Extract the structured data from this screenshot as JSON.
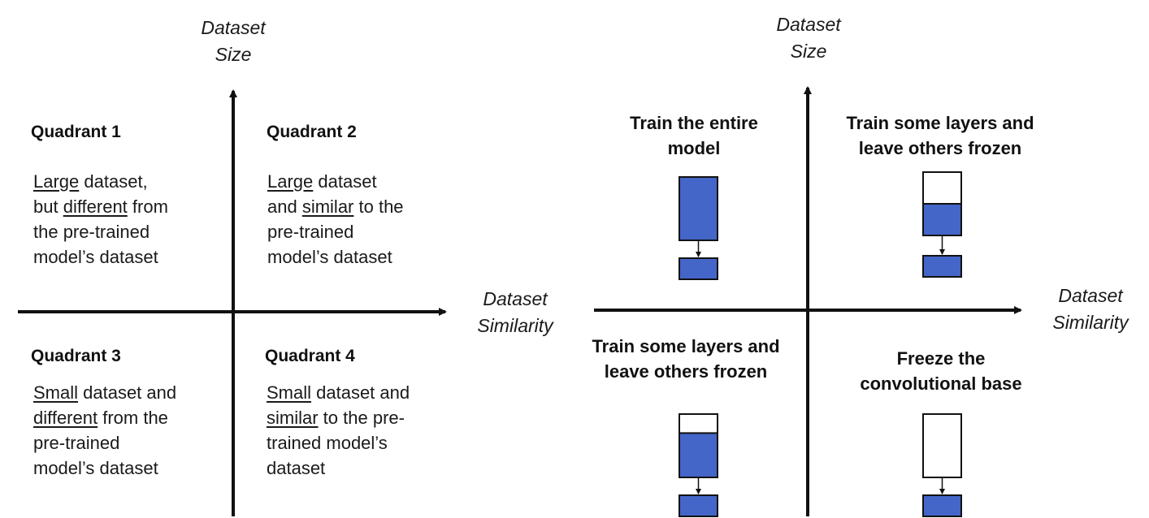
{
  "left_panel": {
    "y_axis_label": [
      "Dataset",
      "Size"
    ],
    "x_axis_label": [
      "Dataset",
      "Similarity"
    ],
    "quadrants": [
      {
        "title": "Quadrant 1",
        "lines": [
          [
            {
              "t": "Large",
              "u": true
            },
            {
              "t": " dataset,",
              "u": false
            }
          ],
          [
            {
              "t": "but ",
              "u": false
            },
            {
              "t": "different",
              "u": true
            },
            {
              "t": " from",
              "u": false
            }
          ],
          [
            {
              "t": "the pre-trained",
              "u": false
            }
          ],
          [
            {
              "t": "model’s dataset",
              "u": false
            }
          ]
        ]
      },
      {
        "title": "Quadrant 2",
        "lines": [
          [
            {
              "t": "Large",
              "u": true
            },
            {
              "t": " dataset",
              "u": false
            }
          ],
          [
            {
              "t": "and ",
              "u": false
            },
            {
              "t": "similar",
              "u": true
            },
            {
              "t": " to the",
              "u": false
            }
          ],
          [
            {
              "t": "pre-trained",
              "u": false
            }
          ],
          [
            {
              "t": "model’s dataset",
              "u": false
            }
          ]
        ]
      },
      {
        "title": "Quadrant 3",
        "lines": [
          [
            {
              "t": "Small",
              "u": true
            },
            {
              "t": " dataset and",
              "u": false
            }
          ],
          [
            {
              "t": "different",
              "u": true
            },
            {
              "t": " from the",
              "u": false
            }
          ],
          [
            {
              "t": "pre-trained",
              "u": false
            }
          ],
          [
            {
              "t": "model’s dataset",
              "u": false
            }
          ]
        ]
      },
      {
        "title": "Quadrant 4",
        "lines": [
          [
            {
              "t": "Small",
              "u": true
            },
            {
              "t": " dataset and",
              "u": false
            }
          ],
          [
            {
              "t": "similar",
              "u": true
            },
            {
              "t": " to the pre-",
              "u": false
            }
          ],
          [
            {
              "t": "trained model’s",
              "u": false
            }
          ],
          [
            {
              "t": "dataset",
              "u": false
            }
          ]
        ]
      }
    ]
  },
  "right_panel": {
    "y_axis_label": [
      "Dataset",
      "Size"
    ],
    "x_axis_label": [
      "Dataset",
      "Similarity"
    ],
    "strategies": [
      {
        "lines": [
          "Train the entire",
          "model"
        ],
        "stack_trained_fraction": 1.0
      },
      {
        "lines": [
          "Train some layers and",
          "leave others frozen"
        ],
        "stack_trained_fraction": 0.5
      },
      {
        "lines": [
          "Train some layers and",
          "leave others frozen"
        ],
        "stack_trained_fraction": 0.7
      },
      {
        "lines": [
          "Freeze the",
          "convolutional base"
        ],
        "stack_trained_fraction": 0.0
      }
    ]
  },
  "colors": {
    "trained_block": "#4466c8",
    "frozen_block": "#ffffff",
    "outline": "#111111",
    "axis": "#111111"
  }
}
